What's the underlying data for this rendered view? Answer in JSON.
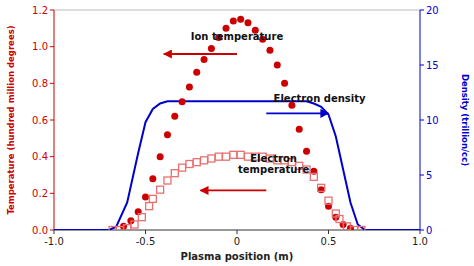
{
  "chart_data": {
    "type": "scatter",
    "xlabel": "Plasma position (m)",
    "ylabel": "Temperature (hundred million degrees)",
    "y2label": "Density (trillion/cc)",
    "xlim": [
      -1.0,
      1.0
    ],
    "xticks": [
      {
        "value": -1.0,
        "label": "-1.0"
      },
      -0.5,
      0,
      0.5,
      {
        "value": 1.0,
        "label": "1.0"
      }
    ],
    "ylim": [
      0,
      1.2
    ],
    "yticks": [
      {
        "value": 0,
        "label": "0.0"
      },
      0.2,
      0.4,
      0.6,
      0.8,
      {
        "value": 1.0,
        "label": "1.0"
      },
      1.2
    ],
    "y2lim": [
      0,
      20
    ],
    "y2ticks": [
      0,
      5,
      10,
      15,
      20
    ],
    "series": [
      {
        "type": "line",
        "axis": "y2",
        "color": "#0000cc",
        "line_style": "solid",
        "x": [
          -1.0,
          -0.7,
          -0.66,
          -0.6,
          -0.54,
          -0.5,
          -0.46,
          -0.42,
          -0.38,
          -0.2,
          0.0,
          0.2,
          0.38,
          0.42,
          0.46,
          0.5,
          0.54,
          0.58,
          0.62,
          0.66,
          0.7,
          1.0
        ],
        "values": [
          0.0,
          0.0,
          0.3,
          2.5,
          7.0,
          9.8,
          11.0,
          11.5,
          11.7,
          11.7,
          11.7,
          11.7,
          11.7,
          11.5,
          11.2,
          10.5,
          8.5,
          5.5,
          2.5,
          0.5,
          0.0,
          0.0
        ]
      },
      {
        "type": "scatter",
        "color": "#cc0000",
        "marker": "circle",
        "x": [
          -0.62,
          -0.58,
          -0.54,
          -0.5,
          -0.46,
          -0.42,
          -0.38,
          -0.34,
          -0.3,
          -0.26,
          -0.22,
          -0.18,
          -0.14,
          -0.1,
          -0.06,
          -0.02,
          0.02,
          0.06,
          0.1,
          0.14,
          0.18,
          0.22,
          0.26,
          0.3,
          0.34,
          0.38,
          0.42,
          0.46,
          0.5,
          0.54,
          0.58,
          0.62
        ],
        "values": [
          0.02,
          0.05,
          0.1,
          0.18,
          0.28,
          0.4,
          0.52,
          0.62,
          0.7,
          0.78,
          0.86,
          0.93,
          0.99,
          1.05,
          1.1,
          1.14,
          1.15,
          1.13,
          1.09,
          1.04,
          0.98,
          0.9,
          0.8,
          0.68,
          0.55,
          0.43,
          0.32,
          0.22,
          0.13,
          0.07,
          0.03,
          0.01
        ]
      },
      {
        "type": "scatter",
        "color": "#e87070",
        "marker": "square",
        "x": [
          -0.68,
          -0.64,
          -0.6,
          -0.56,
          -0.52,
          -0.48,
          -0.46,
          -0.42,
          -0.38,
          -0.34,
          -0.3,
          -0.26,
          -0.22,
          -0.18,
          -0.14,
          -0.1,
          -0.06,
          -0.02,
          0.02,
          0.06,
          0.1,
          0.14,
          0.18,
          0.22,
          0.26,
          0.3,
          0.34,
          0.38,
          0.42,
          0.46,
          0.5,
          0.54,
          0.56,
          0.6,
          0.64,
          0.68
        ],
        "values": [
          0.0,
          0.0,
          0.01,
          0.03,
          0.07,
          0.13,
          0.17,
          0.22,
          0.27,
          0.31,
          0.34,
          0.36,
          0.37,
          0.38,
          0.39,
          0.4,
          0.4,
          0.41,
          0.41,
          0.4,
          0.4,
          0.4,
          0.39,
          0.38,
          0.38,
          0.37,
          0.35,
          0.33,
          0.29,
          0.23,
          0.16,
          0.09,
          0.06,
          0.02,
          0.0,
          0.0
        ]
      }
    ],
    "annotations": [
      [
        "Ion temperature"
      ],
      [
        "Electron density"
      ],
      [
        "Electron",
        "temperature"
      ]
    ]
  }
}
